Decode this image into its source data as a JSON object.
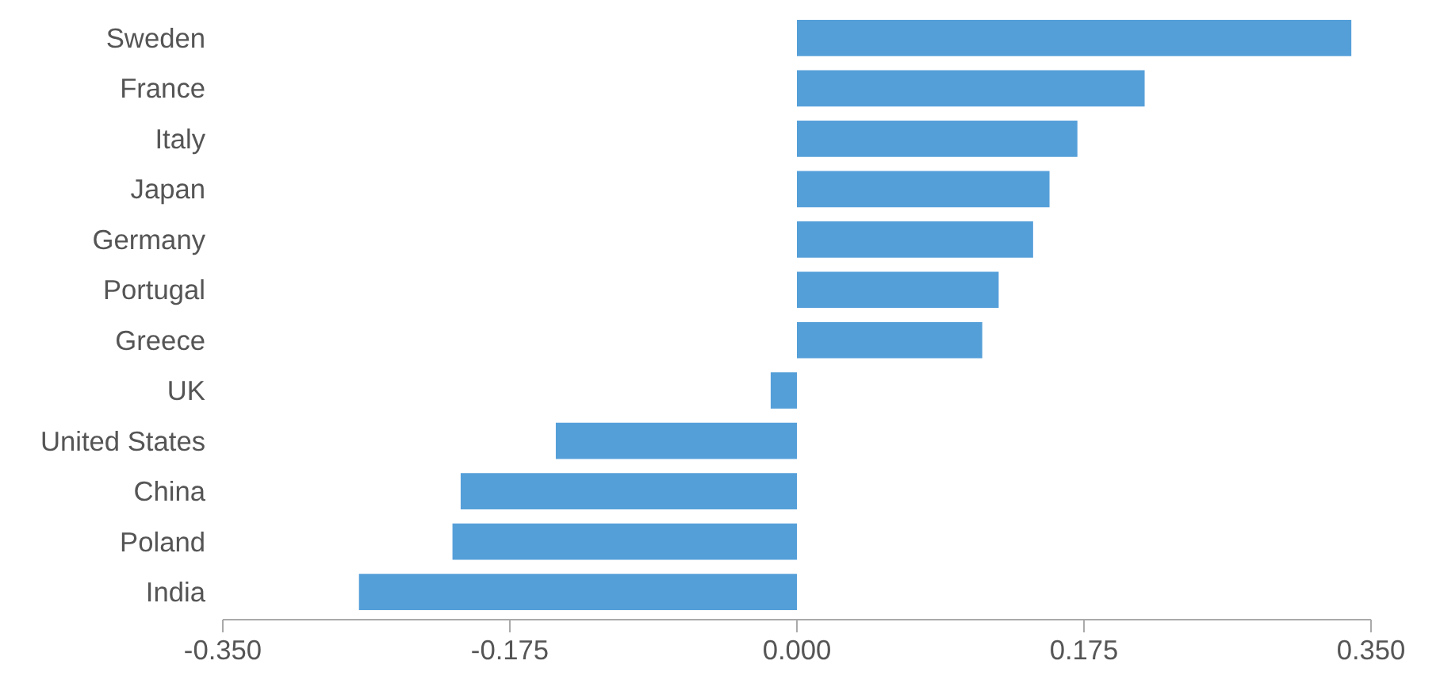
{
  "chart_data": {
    "type": "bar",
    "orientation": "horizontal",
    "categories": [
      "Sweden",
      "France",
      "Italy",
      "Japan",
      "Germany",
      "Portugal",
      "Greece",
      "UK",
      "United States",
      "China",
      "Poland",
      "India"
    ],
    "values": [
      0.338,
      0.212,
      0.171,
      0.154,
      0.144,
      0.123,
      0.113,
      -0.016,
      -0.147,
      -0.205,
      -0.21,
      -0.267
    ],
    "color": "#559fd9",
    "xlim": [
      -0.35,
      0.35
    ],
    "xticks": [
      {
        "value": -0.35,
        "label": "-0.350"
      },
      {
        "value": -0.175,
        "label": "-0.175"
      },
      {
        "value": 0,
        "label": "0.000"
      },
      {
        "value": 0.175,
        "label": "0.175"
      },
      {
        "value": 0.35,
        "label": "0.350"
      }
    ],
    "grid": false
  }
}
